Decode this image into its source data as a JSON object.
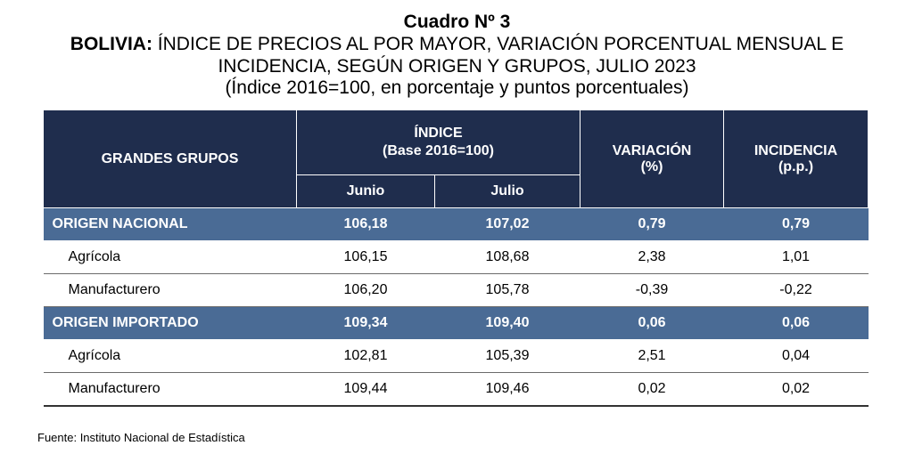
{
  "title": {
    "line1": "Cuadro Nº 3",
    "line2_bold": "BOLIVIA:",
    "line2_rest": " ÍNDICE DE PRECIOS AL POR MAYOR, VARIACIÓN PORCENTUAL MENSUAL E",
    "line3": "INCIDENCIA, SEGÚN ORIGEN Y GRUPOS, JULIO 2023",
    "line4": "(Índice 2016=100, en porcentaje y puntos porcentuales)"
  },
  "headers": {
    "grandes_grupos": "GRANDES GRUPOS",
    "indice": "ÍNDICE",
    "indice_base": "(Base 2016=100)",
    "variacion": "VARIACIÓN",
    "variacion_unit": "(%)",
    "incidencia": "INCIDENCIA",
    "incidencia_unit": "(p.p.)",
    "junio": "Junio",
    "julio": "Julio"
  },
  "rows": [
    {
      "label": "ORIGEN NACIONAL",
      "junio": "106,18",
      "julio": "107,02",
      "variacion": "0,79",
      "incidencia": "0,79"
    },
    {
      "label": "Agrícola",
      "junio": "106,15",
      "julio": "108,68",
      "variacion": "2,38",
      "incidencia": "1,01"
    },
    {
      "label": "Manufacturero",
      "junio": "106,20",
      "julio": "105,78",
      "variacion": "-0,39",
      "incidencia": "-0,22"
    },
    {
      "label": "ORIGEN IMPORTADO",
      "junio": "109,34",
      "julio": "109,40",
      "variacion": "0,06",
      "incidencia": "0,06"
    },
    {
      "label": "Agrícola",
      "junio": "102,81",
      "julio": "105,39",
      "variacion": "2,51",
      "incidencia": "0,04"
    },
    {
      "label": "Manufacturero",
      "junio": "109,44",
      "julio": "109,46",
      "variacion": "0,02",
      "incidencia": "0,02"
    }
  ],
  "source": "Fuente: Instituto Nacional de Estadística",
  "colors": {
    "header_bg": "#1f2d4d",
    "group_bg": "#4a6b95"
  }
}
